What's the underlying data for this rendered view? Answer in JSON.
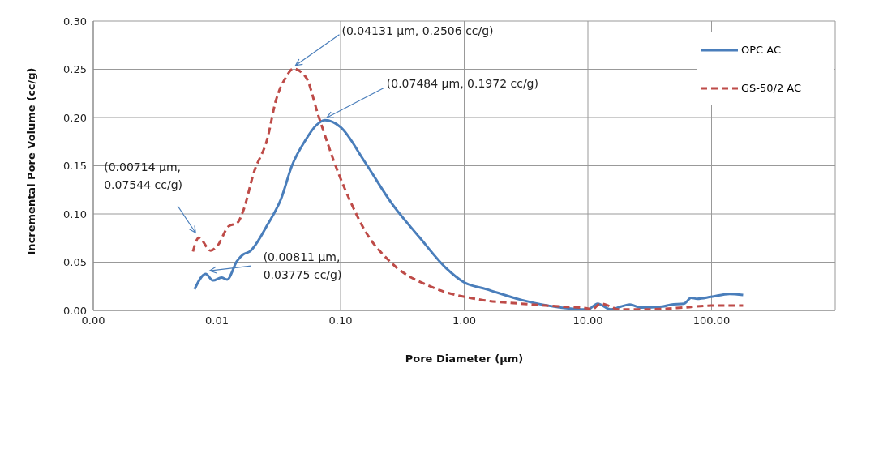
{
  "chart_data": {
    "type": "line",
    "xlabel": "Pore Diameter (µm)",
    "ylabel": "Incremental Pore Volume (cc/g)",
    "log": "x",
    "grid": true,
    "legend": "top right",
    "marker": "none",
    "xlim": [
      0.001,
      1000
    ],
    "xticks": [
      {
        "value": 0.001,
        "label": "0.00"
      },
      {
        "value": 0.01,
        "label": "0.01"
      },
      {
        "value": 0.1,
        "label": "0.10"
      },
      {
        "value": 1,
        "label": "1.00"
      },
      {
        "value": 10,
        "label": "10.00"
      },
      {
        "value": 100,
        "label": "100.00"
      }
    ],
    "ylim": [
      0,
      0.3
    ],
    "yticks": [
      {
        "value": 0,
        "label": "0.00"
      },
      {
        "value": 0.05,
        "label": "0.05"
      },
      {
        "value": 0.1,
        "label": "0.10"
      },
      {
        "value": 0.15,
        "label": "0.15"
      },
      {
        "value": 0.2,
        "label": "0.20"
      },
      {
        "value": 0.25,
        "label": "0.25"
      },
      {
        "value": 0.3,
        "label": "0.30"
      }
    ],
    "series": [
      {
        "name": "OPC AC",
        "color": "#4a7ebb",
        "line_style": "solid",
        "x": [
          0.0066,
          0.00811,
          0.0093,
          0.0109,
          0.0121,
          0.0145,
          0.0163,
          0.0184,
          0.0257,
          0.0331,
          0.0404,
          0.0523,
          0.0636,
          0.07484,
          0.1,
          0.157,
          0.259,
          0.433,
          0.711,
          1.0,
          1.51,
          2.86,
          6.0,
          10.0,
          12.0,
          15.3,
          18.5,
          21.9,
          26.6,
          40.1,
          46.8,
          59.9,
          68.4,
          76.5,
          99.1,
          140,
          180
        ],
        "values": [
          0.022,
          0.03775,
          0.031,
          0.034,
          0.032,
          0.051,
          0.058,
          0.061,
          0.089,
          0.116,
          0.15,
          0.177,
          0.192,
          0.1972,
          0.19,
          0.154,
          0.111,
          0.076,
          0.044,
          0.029,
          0.022,
          0.011,
          0.003,
          0.001,
          0.007,
          0.001,
          0.004,
          0.006,
          0.003,
          0.004,
          0.006,
          0.007,
          0.013,
          0.012,
          0.014,
          0.017,
          0.016
        ]
      },
      {
        "name": "GS-50/2 AC",
        "color": "#be4b48",
        "line_style": "dashed",
        "x": [
          0.0064,
          0.00714,
          0.0089,
          0.0101,
          0.0124,
          0.0147,
          0.0163,
          0.0199,
          0.0257,
          0.0299,
          0.0363,
          0.04131,
          0.0523,
          0.0665,
          0.0956,
          0.122,
          0.157,
          0.259,
          0.551,
          1.37,
          2.86,
          6.0,
          10.0,
          10.8,
          12.6,
          15.3,
          17.6,
          27.7,
          59.9,
          99,
          180
        ],
        "values": [
          0.061,
          0.07544,
          0.062,
          0.067,
          0.087,
          0.091,
          0.103,
          0.143,
          0.179,
          0.217,
          0.242,
          0.2506,
          0.242,
          0.201,
          0.143,
          0.111,
          0.083,
          0.049,
          0.024,
          0.011,
          0.007,
          0.004,
          0.002,
          0.001,
          0.007,
          0.004,
          0.001,
          0.001,
          0.003,
          0.005,
          0.005
        ]
      }
    ],
    "annotations": [
      {
        "text": "(0.04131 µm, 0.2506 cc/g)",
        "x": 0.04131,
        "y": 0.2506
      },
      {
        "text": "(0.07484 µm, 0.1972 cc/g)",
        "x": 0.07484,
        "y": 0.1972
      },
      {
        "text": "(0.00714 µm,\n0.07544 cc/g)",
        "x": 0.00714,
        "y": 0.07544
      },
      {
        "text": "(0.00811 µm,\n0.03775 cc/g)",
        "x": 0.00811,
        "y": 0.03775
      }
    ]
  }
}
